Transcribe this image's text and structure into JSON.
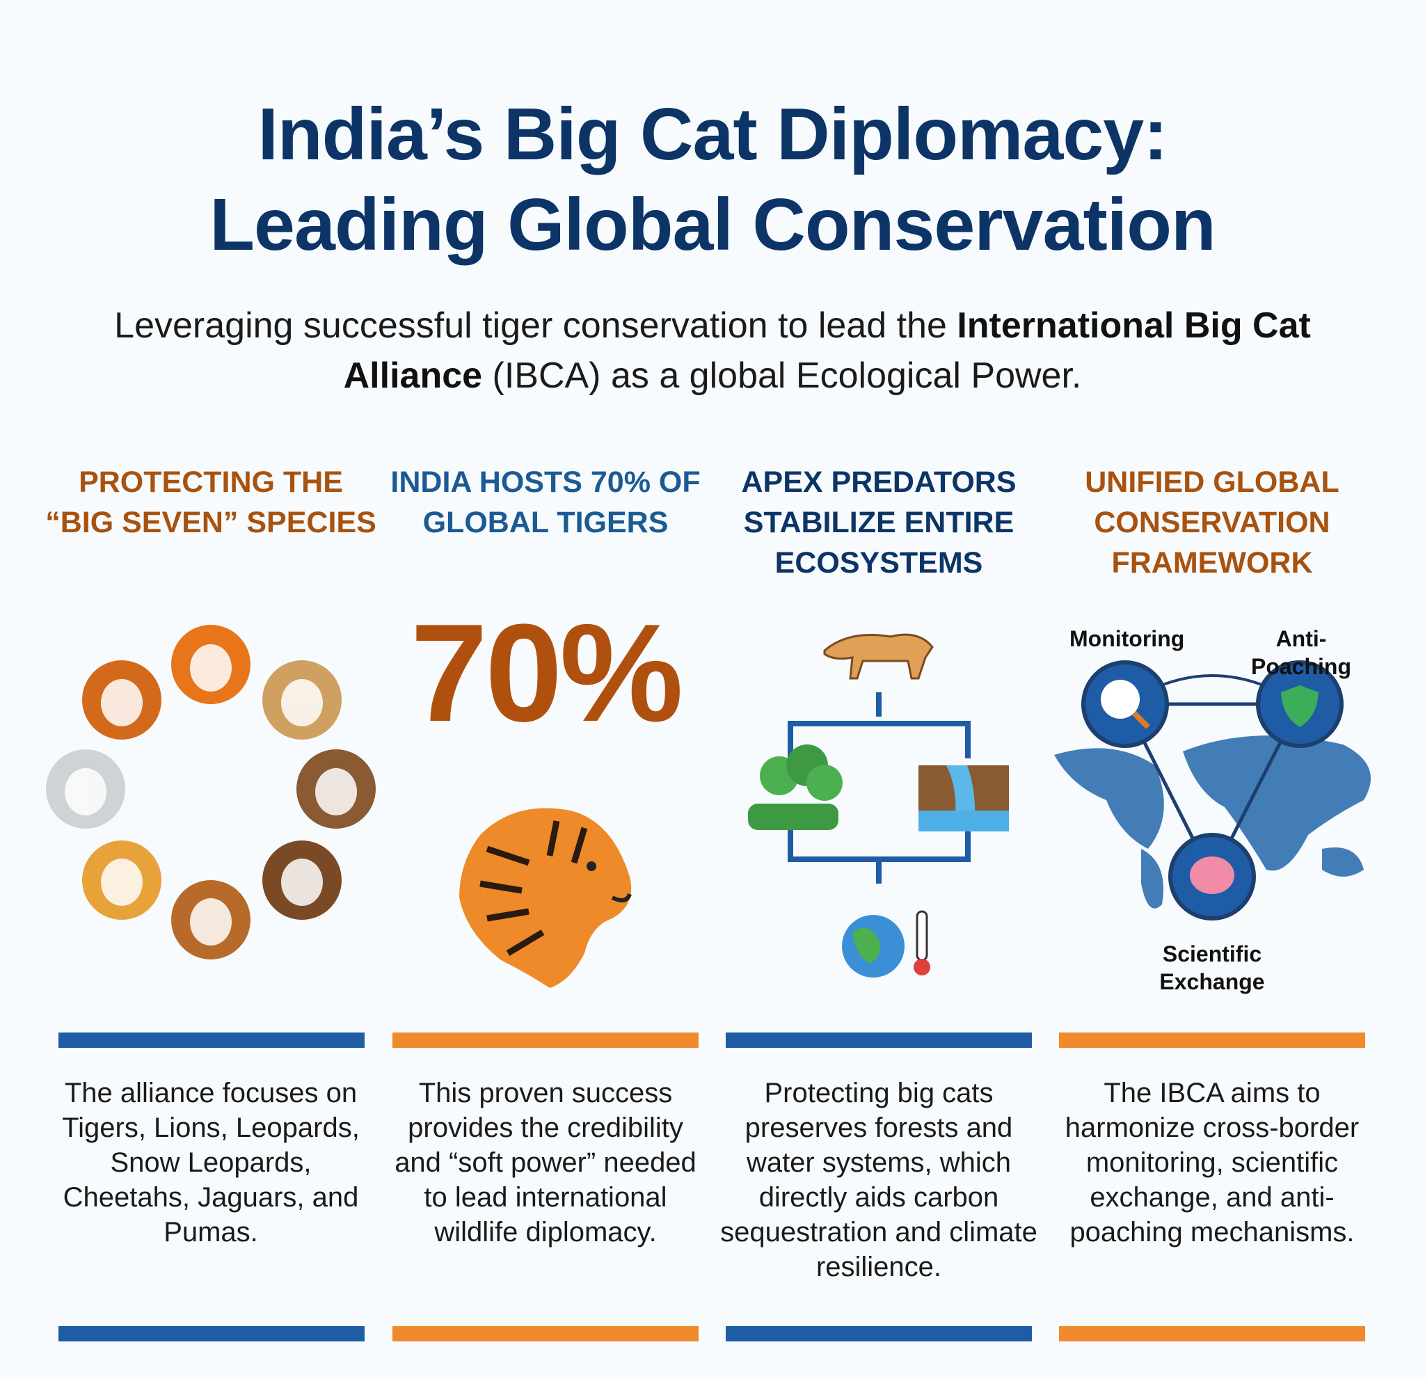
{
  "header": {
    "title_lines": [
      "India’s Big Cat Diplomacy:",
      "Leading Global Conservation"
    ],
    "subtitle": {
      "lead": "Leveraging successful tiger conservation to lead the",
      "bold": "International Big Cat Alliance",
      "tail": "(IBCA) as a global Ecological Power."
    }
  },
  "columns": [
    {
      "heading": "PROTECTING THE “BIG SEVEN” SPECIES",
      "body": "The alliance focuses on Tigers, Lions, Leopards, Snow Leopards, Cheetahs, Jaguars, and Pumas."
    },
    {
      "heading": "INDIA HOSTS 70% OF GLOBAL TIGERS",
      "stat": "70%",
      "body": "This proven success provides the credibility and “soft power” needed to lead international wildlife diplomacy."
    },
    {
      "heading": "APEX PREDATORS STABILIZE ENTIRE ECOSYSTEMS",
      "body": "Protecting big cats preserves forests and water systems, which directly aids carbon sequestration and climate resilience."
    },
    {
      "heading": "UNIFIED GLOBAL CONSERVATION FRAMEWORK",
      "labels": [
        "Monitoring",
        "Anti-Poaching",
        "Scientific Exchange"
      ],
      "body": "The IBCA aims to harmonize cross-border monitoring, scientific exchange, and anti-poaching mechanisms."
    }
  ]
}
